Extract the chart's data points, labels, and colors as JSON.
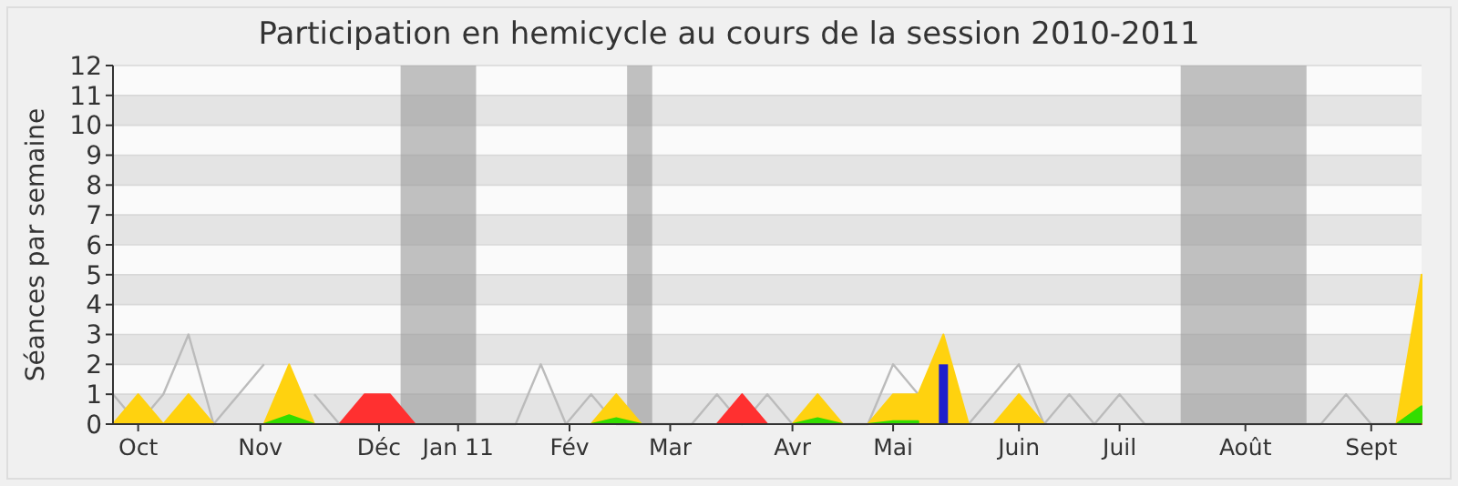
{
  "chart_data": {
    "type": "area",
    "title": "Participation en hemicycle au cours de la session 2010-2011",
    "ylabel": "Séances par semaine",
    "x": [
      "2010-09-27",
      "2010-10-04",
      "2010-10-11",
      "2010-10-18",
      "2010-10-25",
      "2010-11-01",
      "2010-11-08",
      "2010-11-15",
      "2010-11-22",
      "2010-11-29",
      "2010-12-06",
      "2010-12-13",
      "2010-12-20",
      "2010-12-27",
      "2011-01-03",
      "2011-01-10",
      "2011-01-17",
      "2011-01-24",
      "2011-01-31",
      "2011-02-07",
      "2011-02-14",
      "2011-02-21",
      "2011-02-28",
      "2011-03-07",
      "2011-03-14",
      "2011-03-21",
      "2011-03-28",
      "2011-04-04",
      "2011-04-11",
      "2011-04-18",
      "2011-04-25",
      "2011-05-02",
      "2011-05-09",
      "2011-05-16",
      "2011-05-23",
      "2011-05-30",
      "2011-06-06",
      "2011-06-13",
      "2011-06-20",
      "2011-06-27",
      "2011-07-04",
      "2011-07-11",
      "2011-07-18",
      "2011-07-25",
      "2011-08-01",
      "2011-08-08",
      "2011-08-15",
      "2011-08-22",
      "2011-08-29",
      "2011-09-05",
      "2011-09-12",
      "2011-09-19",
      "2011-09-26"
    ],
    "xlim": [
      "2010-09-27",
      "2011-09-26"
    ],
    "ylim": [
      0,
      12
    ],
    "yticks": [
      0,
      1,
      2,
      3,
      4,
      5,
      6,
      7,
      8,
      9,
      10,
      11,
      12
    ],
    "xticks": [
      {
        "value": "2010-10-04",
        "label": "Oct"
      },
      {
        "value": "2010-11-07",
        "label": "Nov"
      },
      {
        "value": "2010-12-10",
        "label": "Déc"
      },
      {
        "value": "2011-01-01",
        "label": "Jan 11"
      },
      {
        "value": "2011-02-01",
        "label": "Fév"
      },
      {
        "value": "2011-03-01",
        "label": "Mar"
      },
      {
        "value": "2011-04-04",
        "label": "Avr"
      },
      {
        "value": "2011-05-02",
        "label": "Mai"
      },
      {
        "value": "2011-06-06",
        "label": "Juin"
      },
      {
        "value": "2011-07-04",
        "label": "Juil"
      },
      {
        "value": "2011-08-08",
        "label": "Août"
      },
      {
        "value": "2011-09-12",
        "label": "Sept"
      }
    ],
    "grid": "y",
    "bands": [
      {
        "axis": "x",
        "from": "2010-12-16",
        "to": "2011-01-06"
      },
      {
        "axis": "x",
        "from": "2011-02-17",
        "to": "2011-02-24"
      },
      {
        "axis": "x",
        "from": "2011-07-21",
        "to": "2011-08-25"
      }
    ],
    "series": [
      {
        "type": "line",
        "color": "#bbbbbb",
        "values": [
          1,
          0,
          1,
          3,
          0,
          1,
          2,
          null,
          1,
          0,
          0,
          0,
          0,
          0,
          0,
          0,
          0,
          2,
          0,
          1,
          0,
          0,
          0,
          0,
          1,
          0,
          1,
          0,
          0,
          0,
          0,
          2,
          1,
          null,
          0,
          1,
          2,
          0,
          1,
          0,
          1,
          0,
          0,
          0,
          0,
          0,
          0,
          0,
          0,
          1,
          0,
          0,
          0
        ]
      },
      {
        "color": "#ffd20f",
        "values": [
          0,
          1,
          0,
          1,
          0,
          0,
          0,
          2,
          0,
          0,
          0,
          0,
          0,
          0,
          0,
          0,
          0,
          0,
          0,
          0,
          1,
          0,
          0,
          0,
          0,
          0,
          0,
          0,
          1,
          0,
          0,
          1,
          1,
          3,
          0,
          0,
          1,
          0,
          0,
          0,
          0,
          0,
          0,
          0,
          0,
          0,
          0,
          0,
          0,
          0,
          0,
          0,
          5
        ]
      },
      {
        "color": "#33dd00",
        "values": [
          0,
          0,
          0,
          0,
          0,
          0,
          0,
          0.3,
          0,
          0,
          0,
          0,
          0,
          0,
          0,
          0,
          0,
          0,
          0,
          0,
          0.2,
          0,
          0,
          0,
          0,
          0,
          0,
          0,
          0.2,
          0,
          0,
          0.1,
          0.1,
          null,
          0,
          0,
          0,
          0,
          0,
          0,
          0,
          0,
          0,
          0,
          0,
          0,
          0,
          0,
          0,
          0,
          0,
          0,
          0.6
        ]
      },
      {
        "color": "#ff3030",
        "values": [
          0,
          0,
          0,
          0,
          0,
          0,
          0,
          0,
          0,
          0,
          1,
          1,
          0,
          0,
          0,
          0,
          0,
          0,
          0,
          0,
          0,
          0,
          0,
          0,
          0,
          1,
          0,
          0,
          0,
          0,
          0,
          0,
          0,
          0,
          0,
          0,
          0,
          0,
          0,
          0,
          0,
          0,
          0,
          0,
          0,
          0,
          0,
          0,
          0,
          0,
          0,
          0,
          0
        ]
      },
      {
        "type": "bar",
        "color": "#2020cc",
        "values": [
          null,
          null,
          null,
          null,
          null,
          null,
          null,
          null,
          null,
          null,
          null,
          null,
          null,
          null,
          null,
          null,
          null,
          null,
          null,
          null,
          null,
          null,
          null,
          null,
          null,
          null,
          null,
          null,
          null,
          null,
          null,
          null,
          null,
          2,
          null,
          null,
          null,
          null,
          null,
          null,
          null,
          null,
          null,
          null,
          null,
          null,
          null,
          null,
          null,
          null,
          null,
          null,
          null
        ]
      }
    ]
  }
}
